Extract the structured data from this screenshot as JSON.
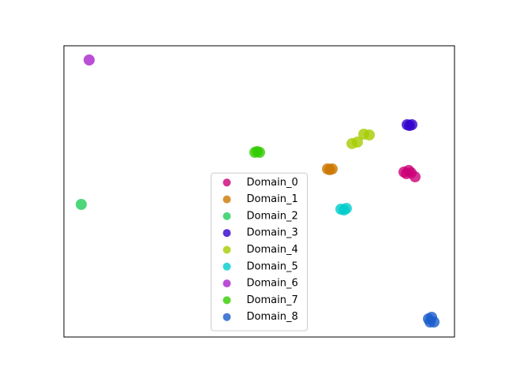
{
  "chart_data": {
    "type": "scatter",
    "xlim": [
      0,
      100
    ],
    "ylim": [
      0,
      100
    ],
    "legend": "lower center",
    "alpha": 0.8,
    "series": [
      {
        "name": "Domain_0",
        "color": "#cc0077",
        "x": [
          87.07,
          88.28,
          87.68,
          89.9,
          88.89
        ],
        "y": [
          56.64,
          57.18,
          56.1,
          55.01,
          56.37
        ]
      },
      {
        "name": "Domain_1",
        "color": "#cc7700",
        "x": [
          67.47,
          68.69,
          68.08
        ],
        "y": [
          57.72,
          57.72,
          57.45
        ]
      },
      {
        "name": "Domain_2",
        "color": "#22cc5a",
        "x": [
          4.44
        ],
        "y": [
          45.53
        ]
      },
      {
        "name": "Domain_3",
        "color": "#3300cc",
        "x": [
          87.88,
          89.09,
          88.48
        ],
        "y": [
          72.9,
          72.9,
          72.63
        ]
      },
      {
        "name": "Domain_4",
        "color": "#a6cc00",
        "x": [
          73.74,
          75.15,
          76.77,
          78.18
        ],
        "y": [
          66.4,
          66.94,
          69.65,
          69.38
        ]
      },
      {
        "name": "Domain_5",
        "color": "#00cccc",
        "x": [
          70.91,
          72.32,
          71.72
        ],
        "y": [
          43.9,
          44.17,
          43.63
        ]
      },
      {
        "name": "Domain_6",
        "color": "#aa22cc",
        "x": [
          6.46
        ],
        "y": [
          95.12
        ]
      },
      {
        "name": "Domain_7",
        "color": "#33cc00",
        "x": [
          48.89,
          50.1,
          49.49
        ],
        "y": [
          63.41,
          63.41,
          63.69
        ]
      },
      {
        "name": "Domain_8",
        "color": "#1a5ccc",
        "x": [
          93.33,
          94.14,
          94.75,
          93.74
        ],
        "y": [
          6.23,
          6.78,
          5.15,
          5.15
        ]
      }
    ]
  }
}
